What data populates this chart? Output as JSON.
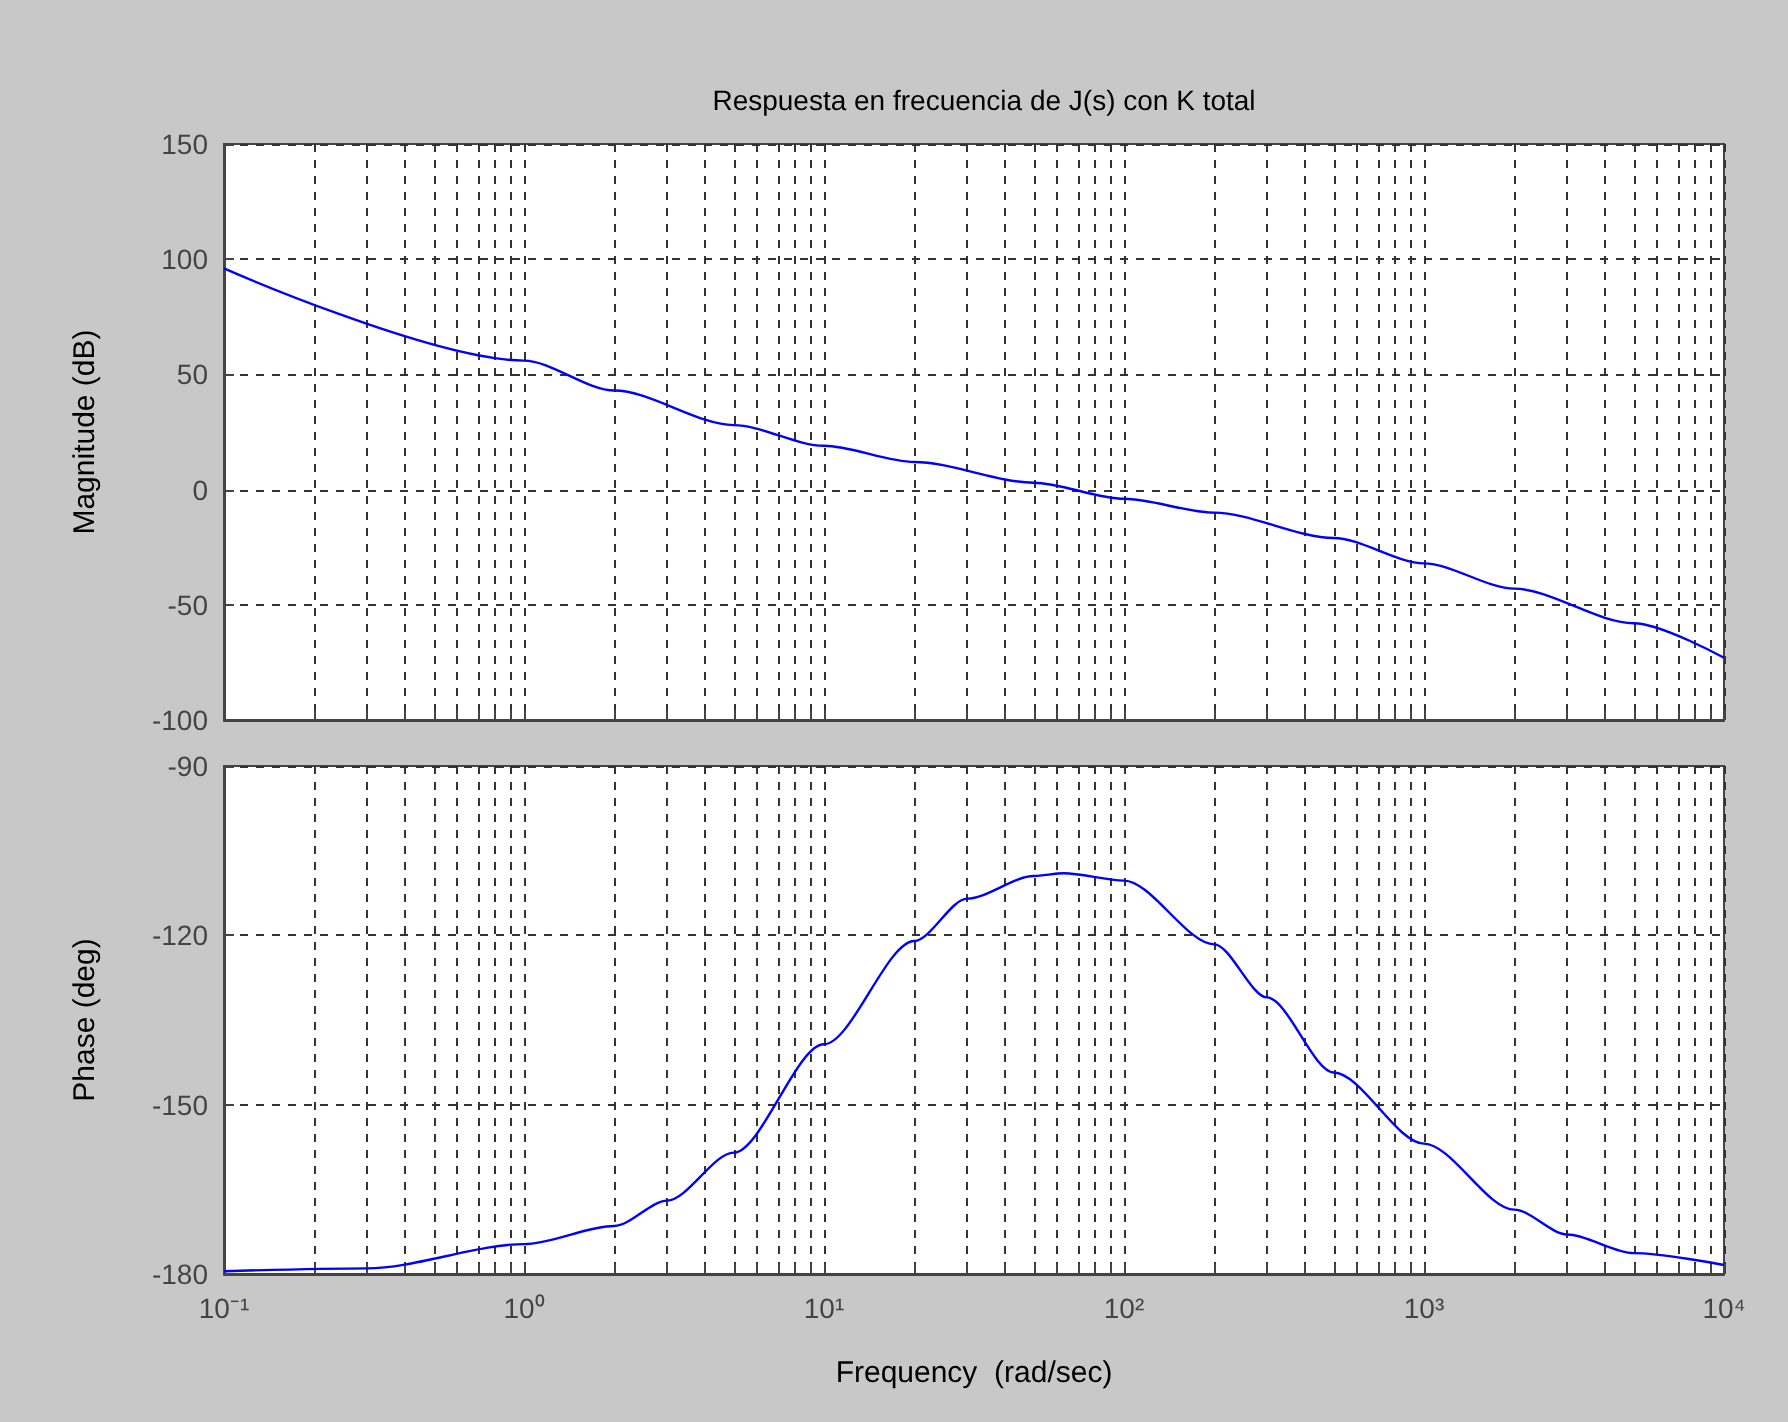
{
  "chart_data": [
    {
      "type": "line",
      "title": "Respuesta en frecuencia de J(s) con K total",
      "ylabel": "Magnitude (dB)",
      "log": "x",
      "grid": true,
      "tick_labels": "y",
      "marker": "none",
      "line_style": "solid",
      "xlim": [
        0.1,
        10000
      ],
      "ylim": [
        -100,
        150
      ],
      "yticks": [
        -100,
        -50,
        0,
        50,
        100,
        150
      ],
      "xticks": [
        {
          "value": 0.1,
          "label": null
        },
        {
          "value": 0.2,
          "label": null
        },
        {
          "value": 0.3,
          "label": null
        },
        {
          "value": 0.4,
          "label": null
        },
        {
          "value": 0.5,
          "label": null
        },
        {
          "value": 0.6,
          "label": null
        },
        {
          "value": 0.7,
          "label": null
        },
        {
          "value": 0.8,
          "label": null
        },
        {
          "value": 0.9,
          "label": null
        },
        {
          "value": 1,
          "label": null
        },
        {
          "value": 2,
          "label": null
        },
        {
          "value": 3,
          "label": null
        },
        {
          "value": 4,
          "label": null
        },
        {
          "value": 5,
          "label": null
        },
        {
          "value": 6,
          "label": null
        },
        {
          "value": 7,
          "label": null
        },
        {
          "value": 8,
          "label": null
        },
        {
          "value": 9,
          "label": null
        },
        {
          "value": 10,
          "label": null
        },
        {
          "value": 20,
          "label": null
        },
        {
          "value": 30,
          "label": null
        },
        {
          "value": 40,
          "label": null
        },
        {
          "value": 50,
          "label": null
        },
        {
          "value": 60,
          "label": null
        },
        {
          "value": 70,
          "label": null
        },
        {
          "value": 80,
          "label": null
        },
        {
          "value": 90,
          "label": null
        },
        {
          "value": 100,
          "label": null
        },
        {
          "value": 200,
          "label": null
        },
        {
          "value": 300,
          "label": null
        },
        {
          "value": 400,
          "label": null
        },
        {
          "value": 500,
          "label": null
        },
        {
          "value": 600,
          "label": null
        },
        {
          "value": 700,
          "label": null
        },
        {
          "value": 800,
          "label": null
        },
        {
          "value": 900,
          "label": null
        },
        {
          "value": 1000,
          "label": null
        },
        {
          "value": 2000,
          "label": null
        },
        {
          "value": 3000,
          "label": null
        },
        {
          "value": 4000,
          "label": null
        },
        {
          "value": 5000,
          "label": null
        },
        {
          "value": 6000,
          "label": null
        },
        {
          "value": 7000,
          "label": null
        },
        {
          "value": 8000,
          "label": null
        },
        {
          "value": 9000,
          "label": null
        },
        {
          "value": 10000,
          "label": null
        }
      ],
      "series": [
        {
          "color": "#0000ff",
          "x": [
            0.1,
            1,
            2,
            5,
            10,
            20,
            50,
            100,
            200,
            500,
            1000,
            2000,
            5000,
            10000
          ],
          "values": [
            96,
            56,
            43,
            28,
            19,
            12,
            3,
            -4,
            -10,
            -21,
            -32,
            -43,
            -58,
            -73
          ]
        }
      ]
    },
    {
      "type": "line",
      "xlabel": "Frequency  (rad/sec)",
      "ylabel": "Phase (deg)",
      "log": "x",
      "grid": true,
      "marker": "none",
      "line_style": "solid",
      "xlim": [
        0.1,
        10000
      ],
      "ylim": [
        -180,
        -90
      ],
      "yticks": [
        -180,
        -150,
        -120,
        -90
      ],
      "xticks": [
        {
          "value": 0.1,
          "label": "10⁻¹"
        },
        {
          "value": 0.2,
          "label": null
        },
        {
          "value": 0.3,
          "label": null
        },
        {
          "value": 0.4,
          "label": null
        },
        {
          "value": 0.5,
          "label": null
        },
        {
          "value": 0.6,
          "label": null
        },
        {
          "value": 0.7,
          "label": null
        },
        {
          "value": 0.8,
          "label": null
        },
        {
          "value": 0.9,
          "label": null
        },
        {
          "value": 1,
          "label": "10⁰"
        },
        {
          "value": 2,
          "label": null
        },
        {
          "value": 3,
          "label": null
        },
        {
          "value": 4,
          "label": null
        },
        {
          "value": 5,
          "label": null
        },
        {
          "value": 6,
          "label": null
        },
        {
          "value": 7,
          "label": null
        },
        {
          "value": 8,
          "label": null
        },
        {
          "value": 9,
          "label": null
        },
        {
          "value": 10,
          "label": "10¹"
        },
        {
          "value": 20,
          "label": null
        },
        {
          "value": 30,
          "label": null
        },
        {
          "value": 40,
          "label": null
        },
        {
          "value": 50,
          "label": null
        },
        {
          "value": 60,
          "label": null
        },
        {
          "value": 70,
          "label": null
        },
        {
          "value": 80,
          "label": null
        },
        {
          "value": 90,
          "label": null
        },
        {
          "value": 100,
          "label": "10²"
        },
        {
          "value": 200,
          "label": null
        },
        {
          "value": 300,
          "label": null
        },
        {
          "value": 400,
          "label": null
        },
        {
          "value": 500,
          "label": null
        },
        {
          "value": 600,
          "label": null
        },
        {
          "value": 700,
          "label": null
        },
        {
          "value": 800,
          "label": null
        },
        {
          "value": 900,
          "label": null
        },
        {
          "value": 1000,
          "label": "10³"
        },
        {
          "value": 2000,
          "label": null
        },
        {
          "value": 3000,
          "label": null
        },
        {
          "value": 4000,
          "label": null
        },
        {
          "value": 5000,
          "label": null
        },
        {
          "value": 6000,
          "label": null
        },
        {
          "value": 7000,
          "label": null
        },
        {
          "value": 8000,
          "label": null
        },
        {
          "value": 9000,
          "label": null
        },
        {
          "value": 10000,
          "label": "10⁴"
        }
      ],
      "series": [
        {
          "color": "#0000ff",
          "x": [
            0.1,
            0.3,
            1,
            2,
            3,
            5,
            10,
            20,
            30,
            50,
            63,
            100,
            200,
            300,
            500,
            1000,
            2000,
            3000,
            5000,
            10000
          ],
          "values": [
            -179.5,
            -179,
            -174.7,
            -171.5,
            -167,
            -158.5,
            -139.3,
            -121,
            -113.5,
            -109.5,
            -109,
            -110.3,
            -121.6,
            -131,
            -144.3,
            -156.9,
            -168.6,
            -173,
            -176.3,
            -178.4
          ]
        }
      ]
    }
  ]
}
